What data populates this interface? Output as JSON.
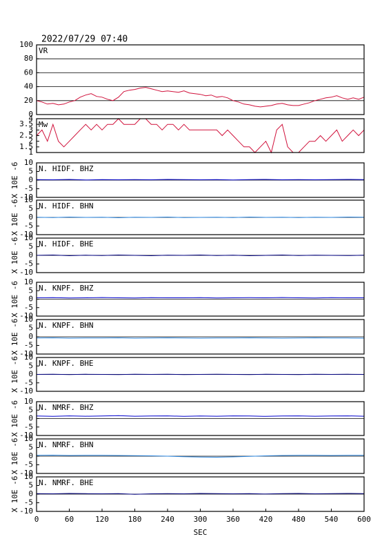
{
  "chart_data": [
    {
      "type": "line",
      "title": "2022/07/29 07:40",
      "label": "VR",
      "color": "#d0103a",
      "grid": true,
      "xlim": [
        0,
        600
      ],
      "ylim": [
        0,
        100
      ],
      "yticks": [
        0,
        20,
        40,
        60,
        80,
        100
      ],
      "x": [
        0,
        10,
        20,
        30,
        40,
        50,
        60,
        70,
        80,
        90,
        100,
        110,
        120,
        130,
        140,
        150,
        160,
        170,
        180,
        190,
        200,
        210,
        220,
        230,
        240,
        250,
        260,
        270,
        280,
        290,
        300,
        310,
        320,
        330,
        340,
        350,
        360,
        370,
        380,
        390,
        400,
        410,
        420,
        430,
        440,
        450,
        460,
        470,
        480,
        490,
        500,
        510,
        520,
        530,
        540,
        550,
        560,
        570,
        580,
        590,
        600
      ],
      "values": [
        20,
        18,
        15,
        16,
        14,
        15,
        18,
        20,
        25,
        28,
        30,
        26,
        25,
        22,
        20,
        25,
        33,
        35,
        36,
        38,
        39,
        37,
        35,
        33,
        34,
        33,
        32,
        34,
        31,
        30,
        29,
        27,
        28,
        25,
        26,
        24,
        20,
        18,
        15,
        14,
        12,
        11,
        12,
        13,
        15,
        16,
        14,
        13,
        13,
        15,
        17,
        20,
        22,
        24,
        25,
        27,
        24,
        22,
        24,
        22,
        25
      ]
    },
    {
      "type": "step",
      "label": "Mw",
      "color": "#d0103a",
      "xlim": [
        0,
        600
      ],
      "ylim": [
        1,
        4
      ],
      "yticks": [
        1,
        1.5,
        2,
        2.5,
        3,
        3.5,
        4
      ],
      "x": [
        0,
        10,
        20,
        30,
        40,
        50,
        60,
        70,
        80,
        90,
        100,
        110,
        120,
        130,
        140,
        150,
        160,
        170,
        180,
        190,
        200,
        210,
        220,
        230,
        240,
        250,
        260,
        270,
        280,
        290,
        300,
        310,
        320,
        330,
        340,
        350,
        360,
        370,
        380,
        390,
        400,
        410,
        420,
        430,
        440,
        450,
        460,
        470,
        480,
        490,
        500,
        510,
        520,
        530,
        540,
        550,
        560,
        570,
        580,
        590,
        600
      ],
      "values": [
        2.5,
        3,
        2,
        3.5,
        2,
        1.5,
        2,
        2.5,
        3,
        3.5,
        3,
        3.5,
        3,
        3.5,
        3.5,
        4,
        3.5,
        3.5,
        3.5,
        4,
        4,
        3.5,
        3.5,
        3,
        3.5,
        3.5,
        3,
        3.5,
        3,
        3,
        3,
        3,
        3,
        3,
        2.5,
        3,
        2.5,
        2,
        1.5,
        1.5,
        1,
        1.5,
        2,
        1,
        3,
        3.5,
        1.5,
        1,
        1,
        1.5,
        2,
        2,
        2.5,
        2,
        2.5,
        3,
        2,
        2.5,
        3,
        2.5,
        3
      ]
    },
    {
      "type": "line",
      "label": "N. HIDF. BHZ",
      "ylabel": "X 10E -6",
      "color": "#0000cc",
      "zero_line": true,
      "xlim": [
        0,
        600
      ],
      "ylim": [
        -10,
        10
      ],
      "yticks": [
        -10,
        -5,
        0,
        5,
        10
      ],
      "x": [
        0,
        30,
        60,
        90,
        120,
        150,
        180,
        210,
        240,
        270,
        300,
        330,
        360,
        390,
        420,
        450,
        480,
        510,
        540,
        570,
        600
      ],
      "values": [
        0.3,
        0.2,
        0.4,
        0.1,
        0.3,
        0.2,
        0.3,
        0.2,
        0.4,
        0.3,
        0.2,
        0.3,
        0.1,
        0.3,
        0.4,
        0.2,
        0.3,
        0.2,
        0.3,
        0.4,
        0.3
      ]
    },
    {
      "type": "line",
      "label": "N. HIDF. BHN",
      "ylabel": "X 10E -6",
      "color": "#2a86e0",
      "zero_line": true,
      "xlim": [
        0,
        600
      ],
      "ylim": [
        -10,
        10
      ],
      "yticks": [
        -10,
        -5,
        0,
        5,
        10
      ],
      "x": [
        0,
        30,
        60,
        90,
        120,
        150,
        180,
        210,
        240,
        270,
        300,
        330,
        360,
        390,
        420,
        450,
        480,
        510,
        540,
        570,
        600
      ],
      "values": [
        0.1,
        -0.1,
        0.2,
        0,
        0.1,
        -0.2,
        0.1,
        0,
        0.2,
        -0.1,
        0,
        0.1,
        -0.1,
        0.2,
        0,
        0.1,
        -0.1,
        0.1,
        0,
        0.2,
        0.1
      ]
    },
    {
      "type": "line",
      "label": "N. HIDF. BHE",
      "ylabel": "X 10E -6",
      "color": "#000080",
      "zero_line": true,
      "xlim": [
        0,
        600
      ],
      "ylim": [
        -10,
        10
      ],
      "yticks": [
        -10,
        -5,
        0,
        5,
        10
      ],
      "x": [
        0,
        30,
        60,
        90,
        120,
        150,
        180,
        210,
        240,
        270,
        300,
        330,
        360,
        390,
        420,
        450,
        480,
        510,
        540,
        570,
        600
      ],
      "values": [
        0,
        0.2,
        -0.2,
        0.1,
        -0.1,
        0.2,
        0,
        -0.2,
        0.1,
        0,
        0.2,
        -0.1,
        0.1,
        -0.2,
        0,
        0.2,
        -0.1,
        0.1,
        0,
        -0.1,
        0.1
      ]
    },
    {
      "type": "line",
      "label": "N. KNPF. BHZ",
      "ylabel": "X 10E -6",
      "color": "#0000cc",
      "zero_line": true,
      "xlim": [
        0,
        600
      ],
      "ylim": [
        -10,
        10
      ],
      "yticks": [
        -10,
        -5,
        0,
        5,
        10
      ],
      "x": [
        0,
        30,
        60,
        90,
        120,
        150,
        180,
        210,
        240,
        270,
        300,
        330,
        360,
        390,
        420,
        450,
        480,
        510,
        540,
        570,
        600
      ],
      "values": [
        0.8,
        0.9,
        0.7,
        0.8,
        1,
        0.8,
        0.7,
        0.9,
        0.8,
        0.8,
        0.9,
        0.7,
        0.8,
        0.9,
        0.8,
        1,
        0.8,
        0.7,
        0.9,
        0.8,
        0.8
      ]
    },
    {
      "type": "line",
      "label": "N. KNPF. BHN",
      "ylabel": "X 10E -6",
      "color": "#2a86e0",
      "zero_line": true,
      "xlim": [
        0,
        600
      ],
      "ylim": [
        -10,
        10
      ],
      "yticks": [
        -10,
        -5,
        0,
        5,
        10
      ],
      "x": [
        0,
        30,
        60,
        90,
        120,
        150,
        180,
        210,
        240,
        270,
        300,
        330,
        360,
        390,
        420,
        450,
        480,
        510,
        540,
        570,
        600
      ],
      "values": [
        -0.7,
        -0.6,
        -0.8,
        -0.7,
        -0.7,
        -0.6,
        -0.8,
        -0.7,
        -0.6,
        -0.7,
        -0.8,
        -0.7,
        -0.7,
        -0.6,
        -0.7,
        -0.8,
        -0.7,
        -0.6,
        -0.7,
        -0.7,
        -0.8
      ]
    },
    {
      "type": "line",
      "label": "N. KNPF. BHE",
      "ylabel": "X 10E -6",
      "color": "#000080",
      "zero_line": true,
      "xlim": [
        0,
        600
      ],
      "ylim": [
        -10,
        10
      ],
      "yticks": [
        -10,
        -5,
        0,
        5,
        10
      ],
      "x": [
        0,
        30,
        60,
        90,
        120,
        150,
        180,
        210,
        240,
        270,
        300,
        330,
        360,
        390,
        420,
        450,
        480,
        510,
        540,
        570,
        600
      ],
      "values": [
        0,
        0.1,
        -0.1,
        0.1,
        0,
        -0.1,
        0.1,
        0,
        0.1,
        -0.1,
        0,
        0.1,
        0,
        -0.1,
        0.1,
        0,
        -0.1,
        0.1,
        0,
        0.1,
        0
      ]
    },
    {
      "type": "line",
      "label": "N. NMRF. BHZ",
      "ylabel": "X 10E -6",
      "color": "#0000cc",
      "zero_line": true,
      "xlim": [
        0,
        600
      ],
      "ylim": [
        -10,
        10
      ],
      "yticks": [
        -10,
        -5,
        0,
        5,
        10
      ],
      "x": [
        0,
        30,
        60,
        90,
        120,
        150,
        180,
        210,
        240,
        270,
        300,
        330,
        360,
        390,
        420,
        450,
        480,
        510,
        540,
        570,
        600
      ],
      "values": [
        1.5,
        1.3,
        1.6,
        1.4,
        1.5,
        1.7,
        1.4,
        1.5,
        1.6,
        1.3,
        1.5,
        1.4,
        1.6,
        1.5,
        1.3,
        1.5,
        1.6,
        1.4,
        1.5,
        1.6,
        1.4
      ]
    },
    {
      "type": "line",
      "label": "N. NMRF. BHN",
      "ylabel": "X 10E -6",
      "color": "#2a86e0",
      "zero_line": true,
      "xlim": [
        0,
        600
      ],
      "ylim": [
        -10,
        10
      ],
      "yticks": [
        -10,
        -5,
        0,
        5,
        10
      ],
      "x": [
        0,
        30,
        60,
        90,
        120,
        150,
        180,
        210,
        240,
        270,
        300,
        330,
        360,
        390,
        420,
        450,
        480,
        510,
        540,
        570,
        600
      ],
      "values": [
        0.5,
        0.6,
        0.4,
        0.5,
        0.5,
        0.4,
        0.3,
        0.2,
        0,
        -0.3,
        -0.5,
        -0.6,
        -0.4,
        -0.1,
        0.2,
        0.4,
        0.5,
        0.5,
        0.4,
        0.5,
        0.5
      ]
    },
    {
      "type": "line",
      "label": "N. NMRF. BHE",
      "ylabel": "X 10E -6",
      "color": "#000080",
      "zero_line": true,
      "xlim": [
        0,
        600
      ],
      "ylim": [
        -10,
        10
      ],
      "yticks": [
        -10,
        -5,
        0,
        5,
        10
      ],
      "xticks": [
        0,
        60,
        120,
        180,
        240,
        300,
        360,
        420,
        480,
        540,
        600
      ],
      "xlabel": "SEC",
      "x": [
        0,
        30,
        60,
        90,
        120,
        150,
        180,
        210,
        240,
        270,
        300,
        330,
        360,
        390,
        420,
        450,
        480,
        510,
        540,
        570,
        600
      ],
      "values": [
        0.3,
        0.2,
        0.4,
        0.3,
        0.2,
        0.3,
        -0.1,
        0.2,
        0.3,
        0.2,
        0.4,
        0.3,
        0.2,
        0.3,
        0.1,
        0.3,
        0.4,
        0.2,
        0.3,
        0.4,
        0.3
      ]
    }
  ]
}
